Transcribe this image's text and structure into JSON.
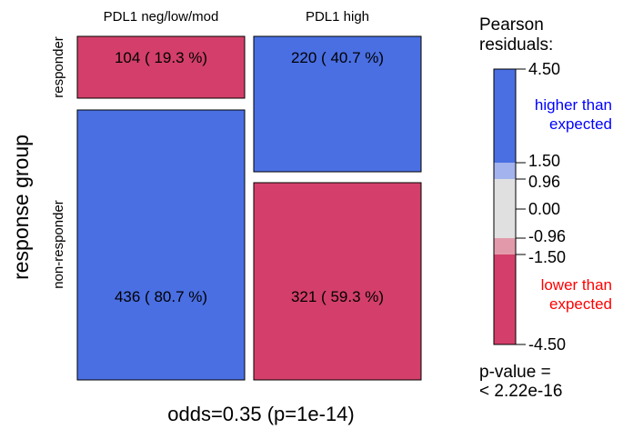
{
  "chart_data": {
    "type": "mosaic",
    "columns": [
      "PDL1 neg/low/mod",
      "PDL1 high"
    ],
    "rows": [
      "responder",
      "non-responder"
    ],
    "cells": [
      {
        "row": "responder",
        "column": "PDL1 neg/low/mod",
        "count": 104,
        "label": "104 ( 19.3 %)",
        "residual_level": "lower"
      },
      {
        "row": "responder",
        "column": "PDL1 high",
        "count": 220,
        "label": "220 ( 40.7 %)",
        "residual_level": "higher"
      },
      {
        "row": "non-responder",
        "column": "PDL1 neg/low/mod",
        "count": 436,
        "label": "436 ( 80.7 %)",
        "residual_level": "higher"
      },
      {
        "row": "non-responder",
        "column": "PDL1 high",
        "count": 321,
        "label": "321 ( 59.3 %)",
        "residual_level": "lower"
      }
    ],
    "ylabel": "response group",
    "xlabel": "odds=0.35 (p=1e-14)",
    "legend": {
      "title_line1": "Pearson",
      "title_line2": "residuals:",
      "ticks": [
        "4.50",
        "1.50",
        "0.96",
        "0.00",
        "-0.96",
        "-1.50",
        "-4.50"
      ],
      "tick_values": [
        4.5,
        1.5,
        0.96,
        0.0,
        -0.96,
        -1.5,
        -4.5
      ],
      "bands": [
        {
          "from": 1.5,
          "to": 4.5,
          "color": "#4a6fe3"
        },
        {
          "from": 0.96,
          "to": 1.5,
          "color": "#a3b3ee"
        },
        {
          "from": -0.96,
          "to": 0.96,
          "color": "#e0e0e0"
        },
        {
          "from": -1.5,
          "to": -0.96,
          "color": "#e29aab"
        },
        {
          "from": -4.5,
          "to": -1.5,
          "color": "#d33f6a"
        }
      ],
      "higher_line1": "higher than",
      "higher_line2": "expected",
      "lower_line1": "lower than",
      "lower_line2": "expected",
      "higher_color": "#0000ff",
      "lower_color": "#ff0000",
      "pvalue_line1": "p-value =",
      "pvalue_line2": "< 2.22e-16"
    },
    "colors": {
      "higher": "#4a6fe3",
      "lower": "#d33f6a"
    }
  }
}
